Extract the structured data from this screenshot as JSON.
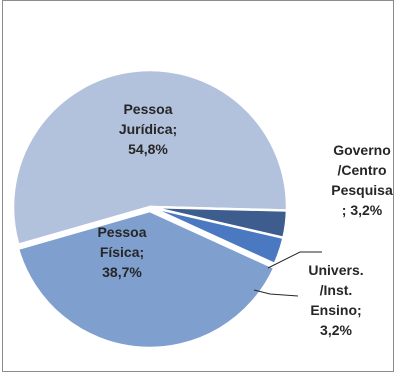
{
  "chart_data": {
    "type": "pie",
    "title": "",
    "legend": "none",
    "slices": [
      {
        "label": "Pessoa Jurídica",
        "value": 54.8,
        "display": "54,8%",
        "color": "#b3c2dc",
        "label_lines": [
          "Pessoa",
          "Jurídica;",
          "54,8%"
        ]
      },
      {
        "label": "Governo /Centro Pesquisa",
        "value": 3.2,
        "display": "3,2%",
        "color": "#3c5d8e",
        "label_lines": [
          "Governo",
          "/Centro",
          "Pesquisa",
          "; 3,2%"
        ]
      },
      {
        "label": "Univers. /Inst. Ensino",
        "value": 3.2,
        "display": "3,2%",
        "color": "#4a78c1",
        "label_lines": [
          "Univers.",
          "/Inst.",
          "Ensino;",
          "3,2%"
        ]
      },
      {
        "label": "Pessoa Física",
        "value": 38.7,
        "display": "38,7%",
        "color": "#7f9fcf",
        "label_lines": [
          "Pessoa",
          "Física;",
          "38,7%"
        ]
      }
    ]
  }
}
